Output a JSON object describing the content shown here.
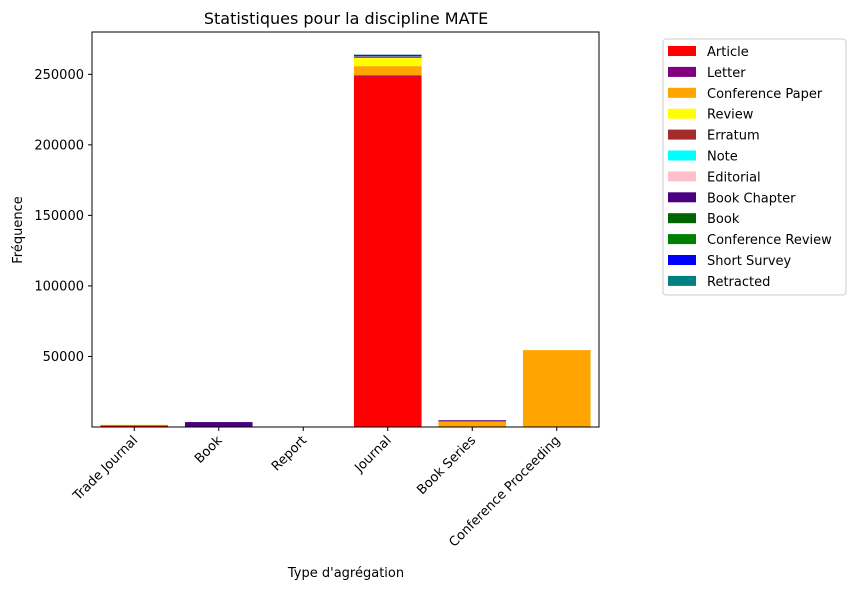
{
  "chart_data": {
    "type": "bar",
    "stacked": true,
    "title": "Statistiques pour la discipline MATE",
    "xlabel": "Type d'agrégation",
    "ylabel": "Fréquence",
    "ylim": [
      0,
      280000
    ],
    "yticks": [
      50000,
      100000,
      150000,
      200000,
      250000
    ],
    "categories": [
      "Trade Journal",
      "Book",
      "Report",
      "Journal",
      "Book Series",
      "Conference Proceeding"
    ],
    "legend_position": "outside-right",
    "grid": false,
    "series": [
      {
        "name": "Article",
        "color": "#ff0000",
        "values": [
          1200,
          0,
          0,
          248500,
          300,
          0
        ]
      },
      {
        "name": "Letter",
        "color": "#800080",
        "values": [
          100,
          0,
          0,
          800,
          0,
          0
        ]
      },
      {
        "name": "Conference Paper",
        "color": "#ffa500",
        "values": [
          100,
          0,
          0,
          6500,
          3500,
          54500
        ]
      },
      {
        "name": "Review",
        "color": "#ffff00",
        "values": [
          200,
          0,
          0,
          5800,
          100,
          0
        ]
      },
      {
        "name": "Erratum",
        "color": "#a52a2a",
        "values": [
          0,
          0,
          0,
          700,
          0,
          0
        ]
      },
      {
        "name": "Note",
        "color": "#00ffff",
        "values": [
          0,
          0,
          0,
          200,
          0,
          0
        ]
      },
      {
        "name": "Editorial",
        "color": "#ffc0cb",
        "values": [
          0,
          0,
          0,
          300,
          0,
          0
        ]
      },
      {
        "name": "Book Chapter",
        "color": "#4b0082",
        "values": [
          0,
          3500,
          0,
          200,
          900,
          0
        ]
      },
      {
        "name": "Book",
        "color": "#006400",
        "values": [
          0,
          0,
          0,
          0,
          0,
          0
        ]
      },
      {
        "name": "Conference Review",
        "color": "#008000",
        "values": [
          0,
          0,
          0,
          0,
          0,
          0
        ]
      },
      {
        "name": "Short Survey",
        "color": "#0000ff",
        "values": [
          0,
          0,
          0,
          800,
          0,
          0
        ]
      },
      {
        "name": "Retracted",
        "color": "#008080",
        "values": [
          0,
          0,
          0,
          100,
          0,
          0
        ]
      }
    ]
  }
}
